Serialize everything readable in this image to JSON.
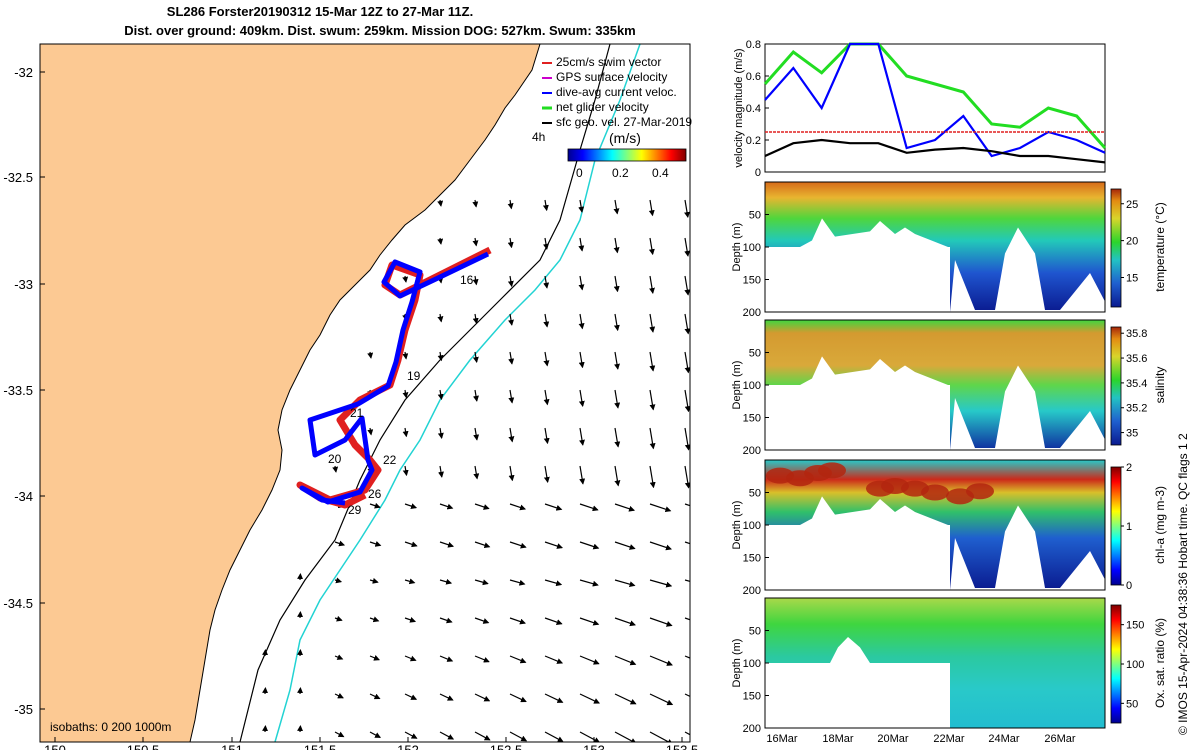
{
  "header": {
    "title_line1": "SL286 Forster20190312 15-Mar 12Z to 27-Mar 11Z.",
    "title_line2": "Dist. over ground: 409km. Dist. swum: 259km. Mission DOG: 527km. Swum: 335km"
  },
  "map": {
    "legend": {
      "items": [
        {
          "label": "25cm/s swim vector",
          "color": "#e02020"
        },
        {
          "label": "GPS surface velocity",
          "color": "#cc00cc"
        },
        {
          "label": "dive-avg current veloc.",
          "color": "#0000ff"
        },
        {
          "label": "net glider velocity",
          "color": "#22dd22"
        },
        {
          "label": "sfc geo. vel. 27-Mar-2019",
          "color": "#000000"
        }
      ],
      "time_label": "4h",
      "unit_label": "(m/s)",
      "colorbar_ticks": [
        "0",
        "0.2",
        "0.4"
      ]
    },
    "isobath_label": "isobaths: 0   200  1000m",
    "x_ticks": [
      "150",
      "150.5",
      "151",
      "151.5",
      "152",
      "152.5",
      "153",
      "153.5"
    ],
    "y_ticks": [
      "-32",
      "-32.5",
      "-33",
      "-33.5",
      "-34",
      "-34.5",
      "-35"
    ],
    "day_labels": [
      "16",
      "19",
      "21",
      "20",
      "22",
      "26",
      "29"
    ],
    "colors": {
      "land": "#fcc993",
      "track": "#0000ff",
      "swim": "#e02020",
      "isobath_200": "#000000",
      "isobath_1000": "#22d3d3"
    }
  },
  "chart_data": [
    {
      "type": "line",
      "ylabel": "velocity magnitude (m/s)",
      "ylim": [
        0,
        0.8
      ],
      "yticks": [
        "0",
        "0.2",
        "0.4",
        "0.6",
        "0.8"
      ],
      "x": [
        "15-Mar",
        "16-Mar",
        "17-Mar",
        "18-Mar",
        "19-Mar",
        "20-Mar",
        "21-Mar",
        "22-Mar",
        "23-Mar",
        "24-Mar",
        "25-Mar",
        "26-Mar",
        "27-Mar"
      ],
      "series": [
        {
          "color": "#22dd22",
          "values": [
            0.55,
            0.75,
            0.62,
            0.85,
            0.8,
            0.6,
            0.55,
            0.5,
            0.3,
            0.28,
            0.4,
            0.35,
            0.15
          ]
        },
        {
          "color": "#0000ff",
          "values": [
            0.45,
            0.65,
            0.4,
            0.85,
            0.8,
            0.15,
            0.2,
            0.35,
            0.1,
            0.15,
            0.25,
            0.2,
            0.12
          ]
        },
        {
          "color": "#000000",
          "values": [
            0.1,
            0.18,
            0.2,
            0.18,
            0.18,
            0.12,
            0.14,
            0.15,
            0.13,
            0.1,
            0.1,
            0.08,
            0.06
          ]
        },
        {
          "color": "#e02020",
          "values": [
            0.25,
            0.25,
            0.25,
            0.25,
            0.25,
            0.25,
            0.25,
            0.25,
            0.25,
            0.25,
            0.25,
            0.25,
            0.25
          ]
        }
      ]
    },
    {
      "type": "heatmap",
      "ylabel": "Depth (m)",
      "yticks": [
        "50",
        "100",
        "150",
        "200"
      ],
      "colorbar_label": "temperature (°C)",
      "colorbar_ticks": [
        "15",
        "20",
        "25"
      ],
      "clim": [
        11,
        27
      ]
    },
    {
      "type": "heatmap",
      "ylabel": "Depth (m)",
      "yticks": [
        "50",
        "100",
        "150",
        "200"
      ],
      "colorbar_label": "salinity",
      "colorbar_ticks": [
        "35",
        "35.2",
        "35.4",
        "35.6",
        "35.8"
      ],
      "clim": [
        34.9,
        35.85
      ]
    },
    {
      "type": "heatmap",
      "ylabel": "Depth (m)",
      "yticks": [
        "50",
        "100",
        "150",
        "200"
      ],
      "colorbar_label": "chl-a (mg m-3)",
      "colorbar_ticks": [
        "0",
        "1",
        "2"
      ],
      "clim": [
        0,
        2
      ]
    },
    {
      "type": "heatmap",
      "ylabel": "Depth (m)",
      "yticks": [
        "50",
        "100",
        "150",
        "200"
      ],
      "colorbar_label": "Ox. sat. ratio (%)",
      "colorbar_ticks": [
        "50",
        "100",
        "150"
      ],
      "clim": [
        25,
        175
      ]
    }
  ],
  "date_ticks": [
    "16Mar",
    "18Mar",
    "20Mar",
    "22Mar",
    "24Mar",
    "26Mar"
  ],
  "copyright": "© IMOS 15-Apr-2024 04:38:36 Hobart time. QC flags 1  2"
}
